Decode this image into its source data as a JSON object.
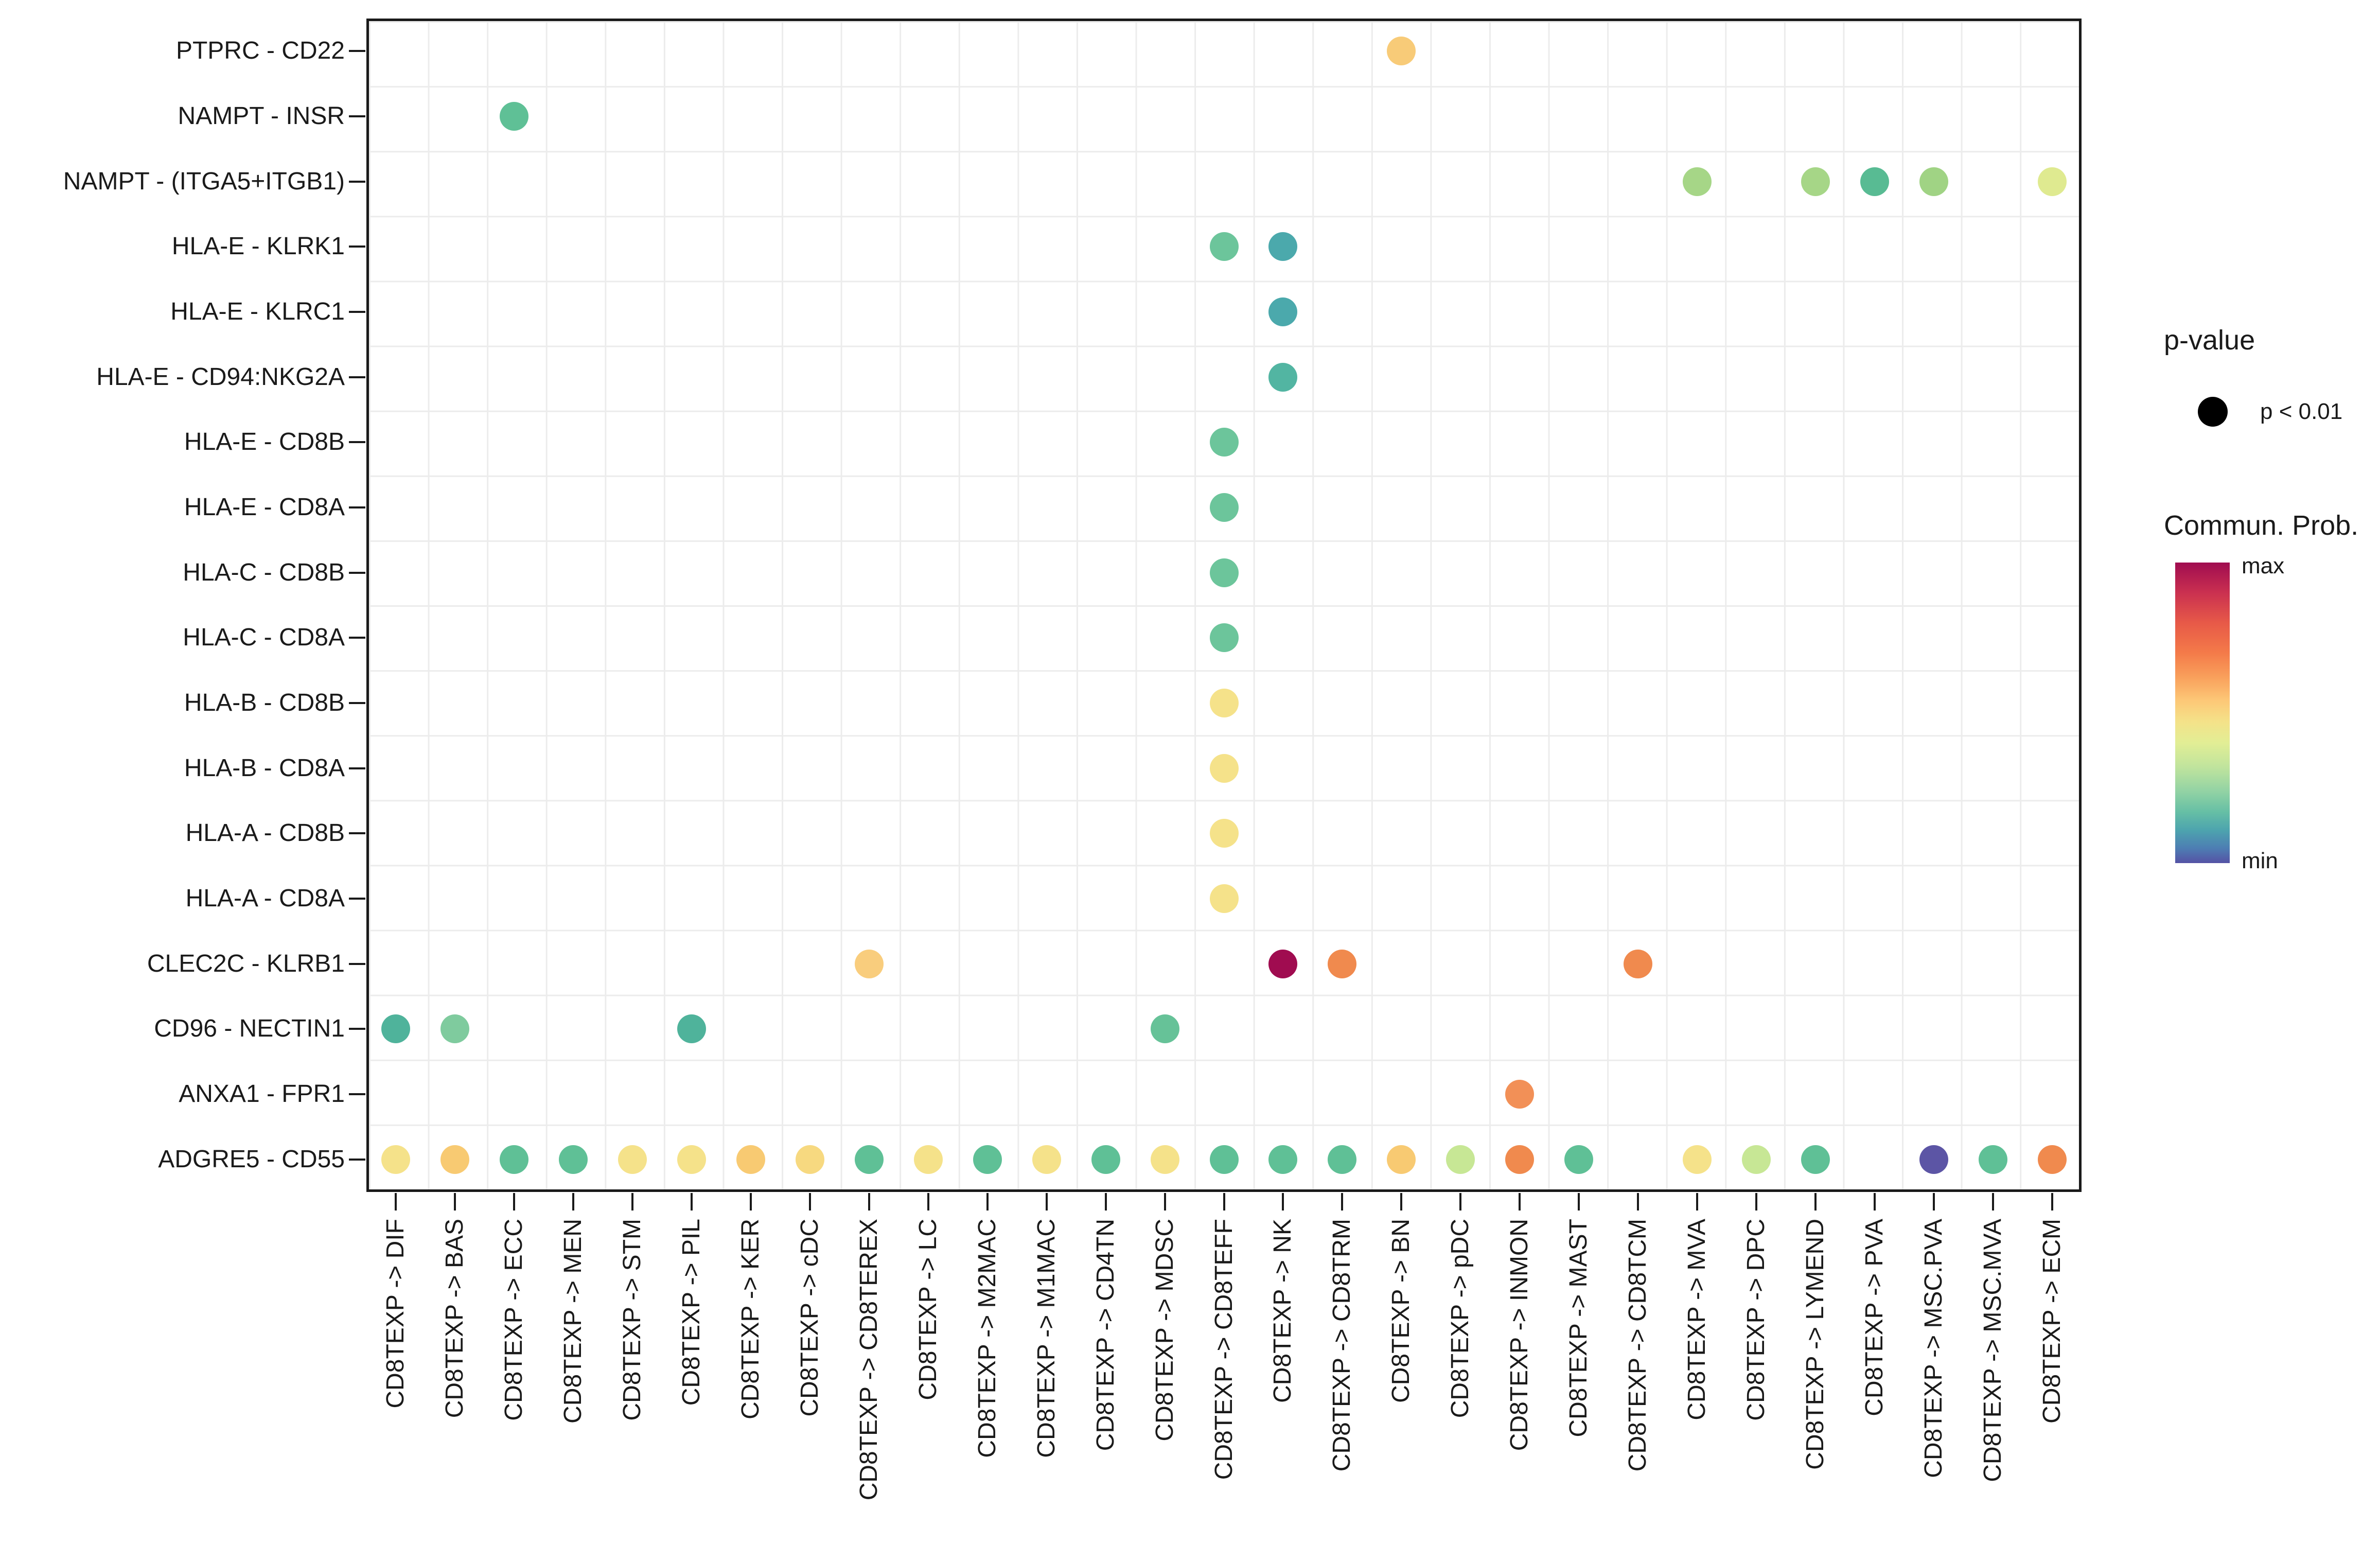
{
  "legend": {
    "pvalue_title": "p-value",
    "pvalue_item_label": "p < 0.01",
    "colorbar_title": "Commun. Prob.",
    "colorbar_max_label": "max",
    "colorbar_min_label": "min",
    "colorbar_max_color": "#a00c50",
    "colorbar_min_color": "#5552a5"
  },
  "chart_data": {
    "type": "scatter",
    "subtype": "bubble-dotplot",
    "title": "",
    "xlabel": "",
    "ylabel": "",
    "grid": true,
    "legend_position": "right",
    "x_categories": [
      "CD8TEXP -> DIF",
      "CD8TEXP -> BAS",
      "CD8TEXP -> ECC",
      "CD8TEXP -> MEN",
      "CD8TEXP -> STM",
      "CD8TEXP -> PIL",
      "CD8TEXP -> KER",
      "CD8TEXP -> cDC",
      "CD8TEXP -> CD8TEREX",
      "CD8TEXP -> LC",
      "CD8TEXP -> M2MAC",
      "CD8TEXP -> M1MAC",
      "CD8TEXP -> CD4TN",
      "CD8TEXP -> MDSC",
      "CD8TEXP -> CD8TEFF",
      "CD8TEXP -> NK",
      "CD8TEXP -> CD8TRM",
      "CD8TEXP -> BN",
      "CD8TEXP -> pDC",
      "CD8TEXP -> INMON",
      "CD8TEXP -> MAST",
      "CD8TEXP -> CD8TCM",
      "CD8TEXP -> MVA",
      "CD8TEXP -> DPC",
      "CD8TEXP -> LYMEND",
      "CD8TEXP -> PVA",
      "CD8TEXP -> MSC.PVA",
      "CD8TEXP -> MSC.MVA",
      "CD8TEXP -> ECM"
    ],
    "y_categories": [
      "PTPRC - CD22",
      "NAMPT - INSR",
      "NAMPT - (ITGA5+ITGB1)",
      "HLA-E - KLRK1",
      "HLA-E - KLRC1",
      "HLA-E - CD94:NKG2A",
      "HLA-E - CD8B",
      "HLA-E - CD8A",
      "HLA-C - CD8B",
      "HLA-C - CD8A",
      "HLA-B - CD8B",
      "HLA-B - CD8A",
      "HLA-A - CD8B",
      "HLA-A - CD8A",
      "CLEC2C - KLRB1",
      "CD96 - NECTIN1",
      "ANXA1 - FPR1",
      "ADGRE5 - CD55"
    ],
    "point_size_meaning": "p < 0.01",
    "color_meaning": "Commun. Prob. (min to max)",
    "points": [
      {
        "row": 1,
        "col": 18,
        "color": "#f8cb78"
      },
      {
        "row": 2,
        "col": 3,
        "color": "#5fc096"
      },
      {
        "row": 3,
        "col": 23,
        "color": "#a6d687"
      },
      {
        "row": 3,
        "col": 25,
        "color": "#a6d687"
      },
      {
        "row": 3,
        "col": 26,
        "color": "#58bb93"
      },
      {
        "row": 3,
        "col": 27,
        "color": "#a0d384"
      },
      {
        "row": 3,
        "col": 29,
        "color": "#dfea90"
      },
      {
        "row": 4,
        "col": 15,
        "color": "#6cc59b"
      },
      {
        "row": 4,
        "col": 16,
        "color": "#4ba9ac"
      },
      {
        "row": 5,
        "col": 16,
        "color": "#4ba9ac"
      },
      {
        "row": 6,
        "col": 16,
        "color": "#52b5a2"
      },
      {
        "row": 7,
        "col": 15,
        "color": "#6cc59b"
      },
      {
        "row": 8,
        "col": 15,
        "color": "#6cc59b"
      },
      {
        "row": 9,
        "col": 15,
        "color": "#6cc59b"
      },
      {
        "row": 10,
        "col": 15,
        "color": "#6cc59b"
      },
      {
        "row": 11,
        "col": 15,
        "color": "#f5e28a"
      },
      {
        "row": 12,
        "col": 15,
        "color": "#f5e28a"
      },
      {
        "row": 13,
        "col": 15,
        "color": "#f5e28a"
      },
      {
        "row": 14,
        "col": 15,
        "color": "#f5e28a"
      },
      {
        "row": 15,
        "col": 9,
        "color": "#f9cd7d"
      },
      {
        "row": 15,
        "col": 16,
        "color": "#a00c50"
      },
      {
        "row": 15,
        "col": 17,
        "color": "#f08a4e"
      },
      {
        "row": 15,
        "col": 22,
        "color": "#f08a4e"
      },
      {
        "row": 16,
        "col": 1,
        "color": "#4fb39b"
      },
      {
        "row": 16,
        "col": 2,
        "color": "#7fcb9e"
      },
      {
        "row": 16,
        "col": 6,
        "color": "#4fb39b"
      },
      {
        "row": 16,
        "col": 14,
        "color": "#66c298"
      },
      {
        "row": 17,
        "col": 20,
        "color": "#f29057"
      },
      {
        "row": 18,
        "col": 1,
        "color": "#f5e28a"
      },
      {
        "row": 18,
        "col": 2,
        "color": "#f8ca72"
      },
      {
        "row": 18,
        "col": 3,
        "color": "#5fc096"
      },
      {
        "row": 18,
        "col": 4,
        "color": "#5fc096"
      },
      {
        "row": 18,
        "col": 5,
        "color": "#f5e28a"
      },
      {
        "row": 18,
        "col": 6,
        "color": "#f5e28a"
      },
      {
        "row": 18,
        "col": 7,
        "color": "#f8ca72"
      },
      {
        "row": 18,
        "col": 8,
        "color": "#f7d980"
      },
      {
        "row": 18,
        "col": 9,
        "color": "#5fc096"
      },
      {
        "row": 18,
        "col": 10,
        "color": "#f5e28a"
      },
      {
        "row": 18,
        "col": 11,
        "color": "#5fc096"
      },
      {
        "row": 18,
        "col": 12,
        "color": "#f5e28a"
      },
      {
        "row": 18,
        "col": 13,
        "color": "#5fc096"
      },
      {
        "row": 18,
        "col": 14,
        "color": "#f5e28a"
      },
      {
        "row": 18,
        "col": 15,
        "color": "#5fc096"
      },
      {
        "row": 18,
        "col": 16,
        "color": "#5fc096"
      },
      {
        "row": 18,
        "col": 17,
        "color": "#5fc096"
      },
      {
        "row": 18,
        "col": 18,
        "color": "#f8ca72"
      },
      {
        "row": 18,
        "col": 19,
        "color": "#c7e795"
      },
      {
        "row": 18,
        "col": 20,
        "color": "#f08a4e"
      },
      {
        "row": 18,
        "col": 21,
        "color": "#5fc096"
      },
      {
        "row": 18,
        "col": 23,
        "color": "#f5e28a"
      },
      {
        "row": 18,
        "col": 24,
        "color": "#c7e795"
      },
      {
        "row": 18,
        "col": 25,
        "color": "#5fc096"
      },
      {
        "row": 18,
        "col": 27,
        "color": "#5c55a5"
      },
      {
        "row": 18,
        "col": 28,
        "color": "#5fc096"
      },
      {
        "row": 18,
        "col": 29,
        "color": "#f08a4e"
      }
    ]
  }
}
